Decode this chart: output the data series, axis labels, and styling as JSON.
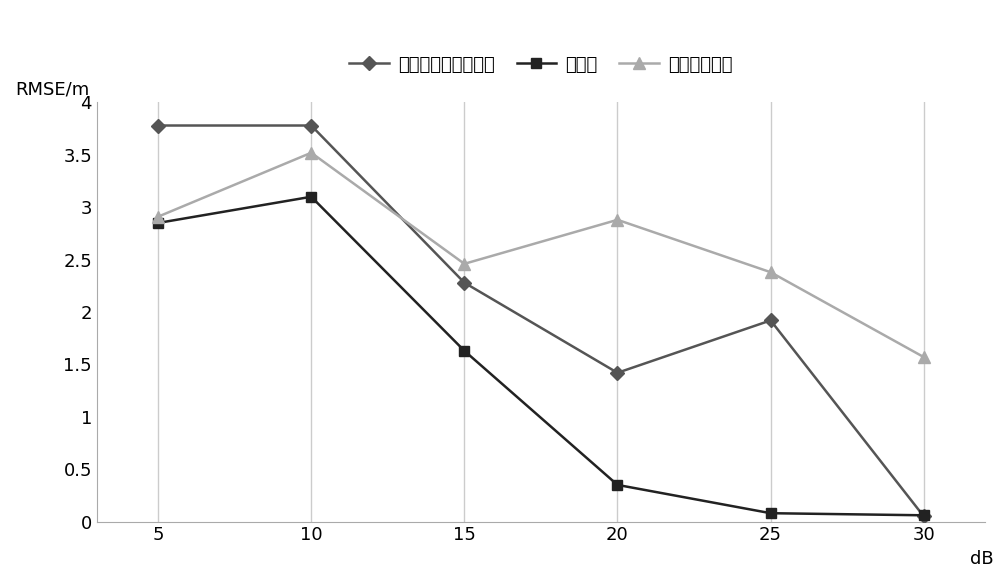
{
  "x": [
    5,
    10,
    15,
    20,
    25,
    30
  ],
  "series": [
    {
      "label": "约束加权最小二乘法",
      "values": [
        3.78,
        3.78,
        2.28,
        1.42,
        1.92,
        0.05
      ],
      "color": "#555555",
      "marker": "D",
      "markersize": 7,
      "linewidth": 1.8
    },
    {
      "label": "本发明",
      "values": [
        2.85,
        3.1,
        1.63,
        0.35,
        0.08,
        0.06
      ],
      "color": "#222222",
      "marker": "s",
      "markersize": 7,
      "linewidth": 1.8
    },
    {
      "label": "遗传寻优算法",
      "values": [
        2.91,
        3.52,
        2.46,
        2.88,
        2.38,
        1.57
      ],
      "color": "#aaaaaa",
      "marker": "^",
      "markersize": 8,
      "linewidth": 1.8
    }
  ],
  "xlabel": "dB",
  "ylabel": "RMSE/m",
  "ylim": [
    0,
    4
  ],
  "ytick_labels": [
    "0",
    "0.5",
    "1",
    "1.5",
    "2",
    "2.5",
    "3",
    "3.5",
    "4"
  ],
  "ytick_values": [
    0,
    0.5,
    1.0,
    1.5,
    2.0,
    2.5,
    3.0,
    3.5,
    4.0
  ],
  "xticks": [
    5,
    10,
    15,
    20,
    25,
    30
  ],
  "grid_color": "#cccccc",
  "background_color": "#ffffff",
  "legend_fontsize": 13,
  "axis_fontsize": 13,
  "tick_fontsize": 13
}
